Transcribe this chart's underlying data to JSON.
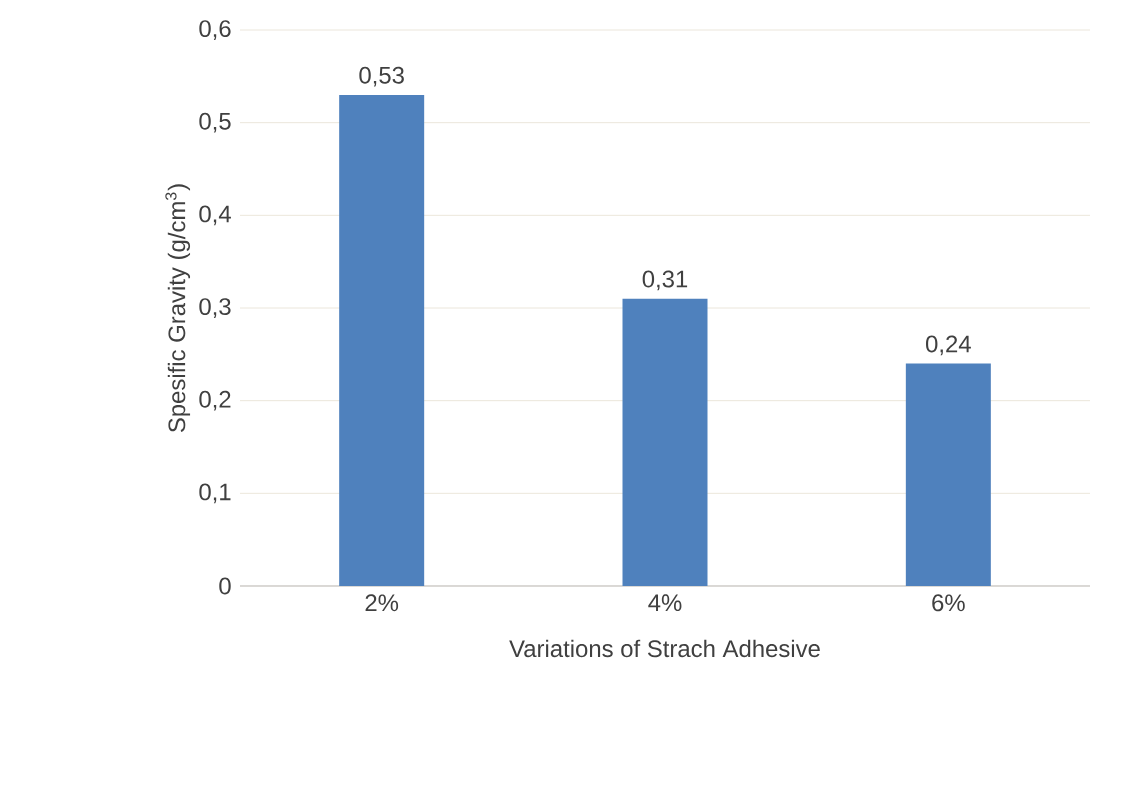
{
  "chart_data": {
    "type": "bar",
    "xlabel": "Variations of Strach Adhesive",
    "ylabel": "Spesific Gravity (g/cm$^{3}$)",
    "categories": [
      "2%",
      "4%",
      "6%"
    ],
    "values": [
      0.53,
      0.31,
      0.24
    ],
    "value_labels": [
      "0,53",
      "0,31",
      "0,24"
    ],
    "color": "#4f81bd",
    "ylim": [
      0,
      0.6
    ],
    "yticks": [
      0,
      {
        "value": 0.1,
        "label": "0,1"
      },
      {
        "value": 0.2,
        "label": "0,2"
      },
      {
        "value": 0.3,
        "label": "0,3"
      },
      {
        "value": 0.4,
        "label": "0,4"
      },
      {
        "value": 0.5,
        "label": "0,5"
      },
      {
        "value": 0.6,
        "label": "0,6"
      }
    ],
    "grid": "y"
  }
}
